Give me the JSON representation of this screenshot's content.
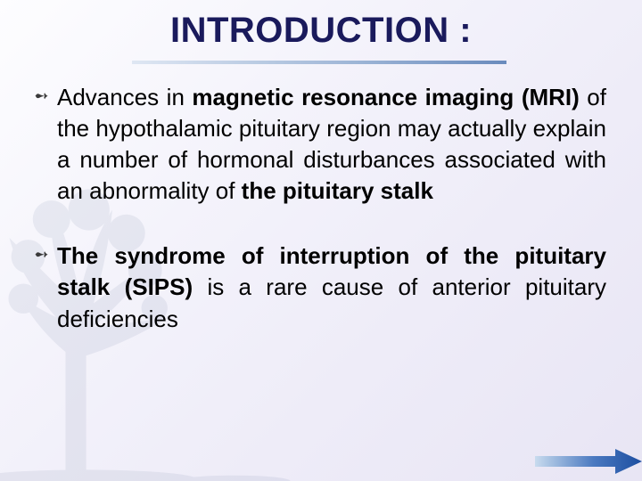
{
  "title": "INTRODUCTION :",
  "title_color": "#1a1a5c",
  "title_fontsize": 40,
  "background_gradient": [
    "#fdfdff",
    "#f4f3fb",
    "#eeecf8",
    "#e8e5f4"
  ],
  "rule_gradient": [
    "#dfe7f3",
    "#9db5d6",
    "#6a8bbd"
  ],
  "tree_color": "#7a88a8",
  "accent_gradient": [
    "#c8dbee",
    "#4a79c0",
    "#1c4ea0"
  ],
  "bullets": [
    {
      "text_html": "Advances in <b>magnetic resonance imaging</b> <b>(MRI)</b> of the hypothalamic pituitary region may actually explain a number of hormonal disturbances associated with an abnormality of <b>the pituitary stalk</b>"
    },
    {
      "text_html": "<b>The syndrome of interruption of the pituitary stalk (SIPS)</b> is a rare cause of anterior pituitary deficiencies"
    }
  ],
  "body_fontsize": 26,
  "body_color": "#000000",
  "bullet_glyph": "➻"
}
